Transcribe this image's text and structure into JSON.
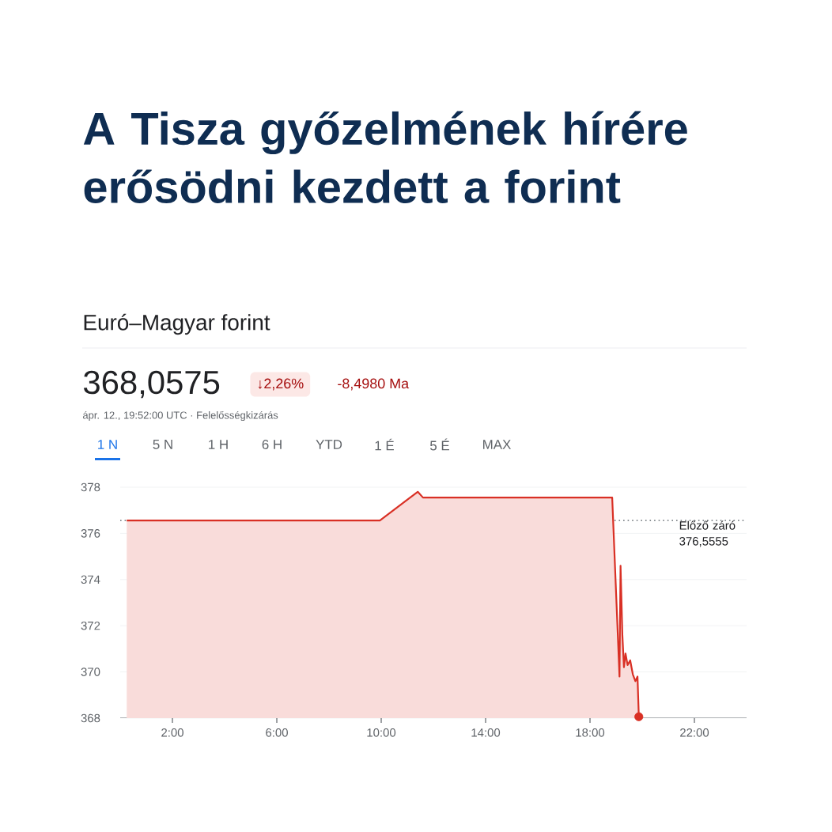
{
  "chart_data": {
    "type": "area",
    "title": "A Tisza győzelmének hírére erősödni kezdett a forint",
    "subtitle": "Euró–Magyar forint",
    "annotations": [
      "368,0575",
      "↓2,26%",
      "-8,4980 Ma",
      "ápr. 12., 19:52:00 UTC · Felelősségkizárás",
      "1 N",
      "5 N",
      "1 H",
      "6 H",
      "YTD",
      "1 É",
      "5 É",
      "MAX"
    ],
    "series": [
      {
        "color": "#d93025",
        "x": [
          0.25,
          9.95,
          11.4,
          11.6,
          18.85,
          19.13,
          19.17,
          19.24,
          19.3,
          19.36,
          19.44,
          19.54,
          19.64,
          19.74,
          19.82,
          19.87
        ],
        "values": [
          376.56,
          376.56,
          377.8,
          377.55,
          377.55,
          369.8,
          374.6,
          371.6,
          370.2,
          370.8,
          370.3,
          370.5,
          369.9,
          369.6,
          369.8,
          368.06
        ]
      },
      {
        "type": "scatter",
        "color": "#d93025",
        "marker": "circle",
        "x": [
          19.87
        ],
        "values": [
          368.06
        ]
      }
    ],
    "xlim": [
      0,
      24
    ],
    "xticks": [
      {
        "value": 2,
        "label": "2:00"
      },
      {
        "value": 6,
        "label": "6:00"
      },
      {
        "value": 10,
        "label": "10:00"
      },
      {
        "value": 14,
        "label": "14:00"
      },
      {
        "value": 18,
        "label": "18:00"
      },
      {
        "value": 22,
        "label": "22:00"
      }
    ],
    "ylim": [
      368,
      378
    ],
    "yticks": [
      368,
      370,
      372,
      374,
      376,
      378
    ],
    "grid": "y",
    "ref_lines": [
      {
        "axis": "y",
        "value": 376.5555,
        "label": "Előző záró 376,5555",
        "color": "#80868b",
        "line_style": "dotted"
      }
    ]
  }
}
